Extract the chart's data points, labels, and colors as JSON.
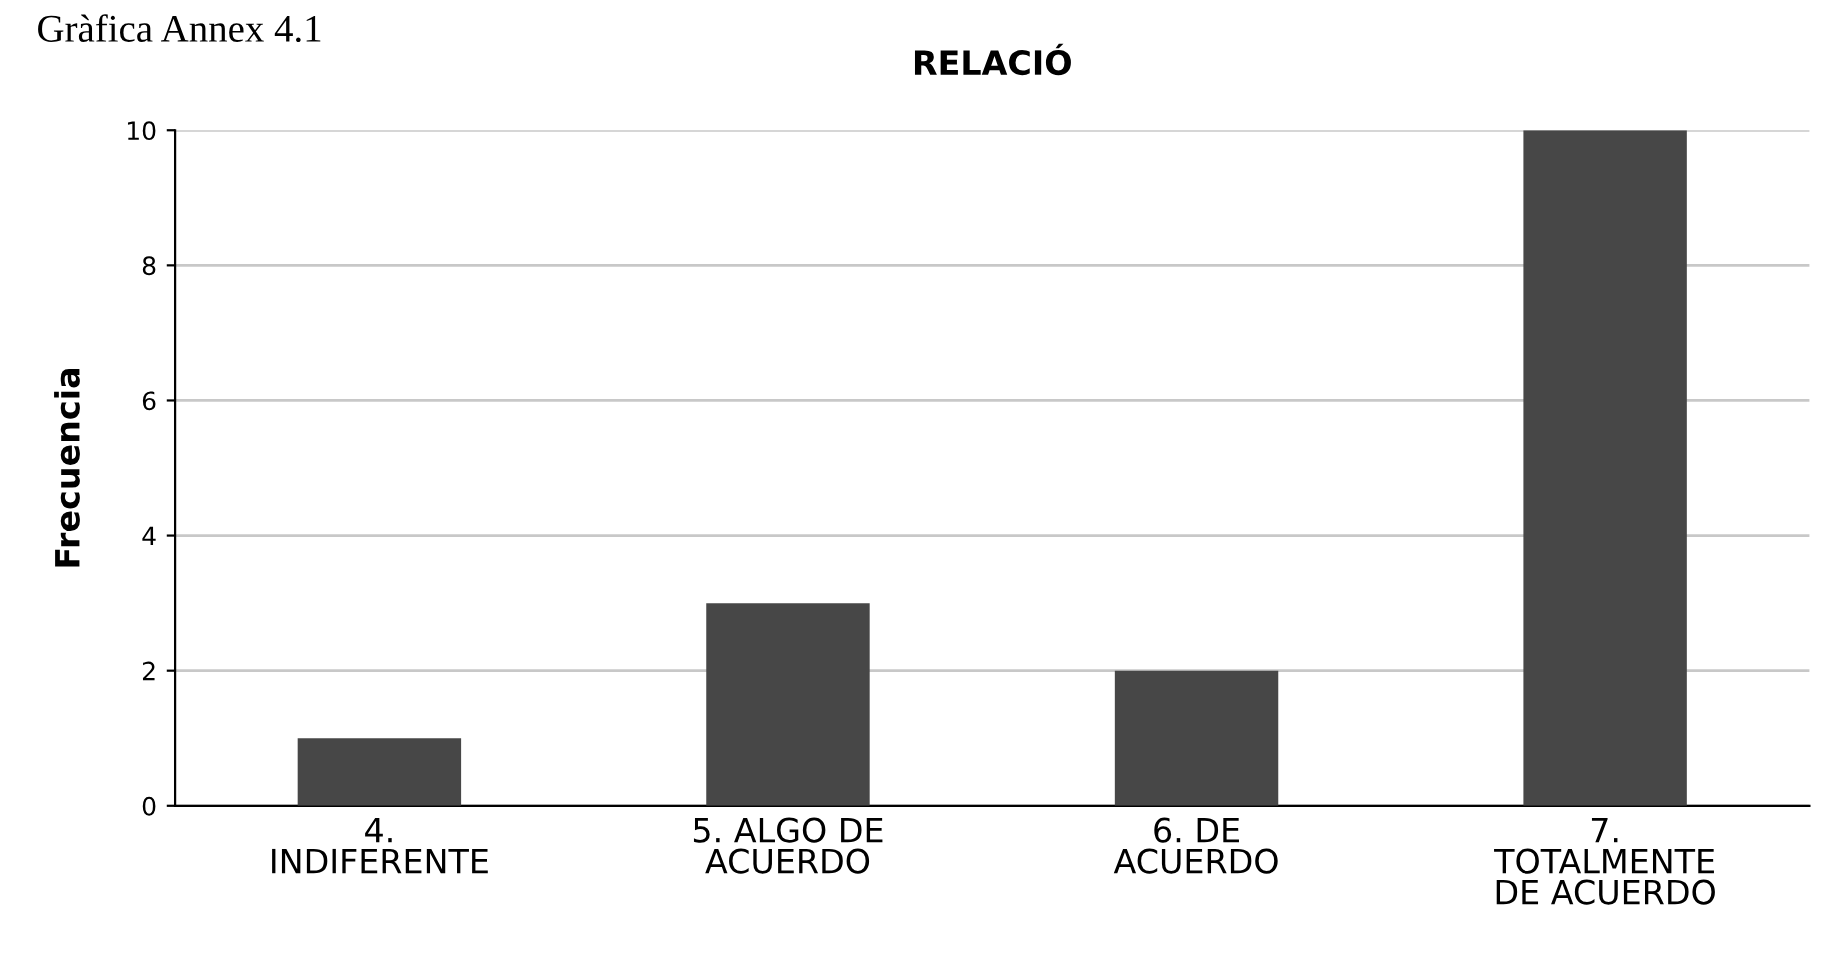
{
  "chart_data": {
    "type": "bar",
    "title": "RELACIÓ",
    "ylabel": "Frecuencia",
    "annotations": [
      "Gràfica Annex 4.1"
    ],
    "categories": [
      "4.\nINDIFERENTE",
      "5. ALGO DE\nACUERDO",
      "6. DE\nACUERDO",
      "7.\nTOTALMENTE\nDE ACUERDO"
    ],
    "values": [
      1,
      3,
      2,
      10
    ],
    "color": "#474747",
    "ylim": [
      0,
      10
    ],
    "yticks": [
      0,
      2,
      4,
      6,
      8,
      10
    ],
    "grid": "y",
    "legend": false
  }
}
